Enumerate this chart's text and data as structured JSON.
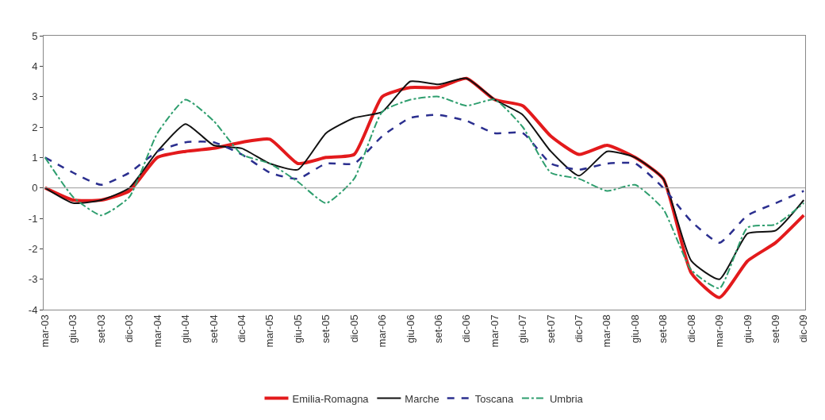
{
  "chart_data": {
    "type": "line",
    "categories": [
      "mar-03",
      "giu-03",
      "set-03",
      "dic-03",
      "mar-04",
      "giu-04",
      "set-04",
      "dic-04",
      "mar-05",
      "giu-05",
      "set-05",
      "dic-05",
      "mar-06",
      "giu-06",
      "set-06",
      "dic-06",
      "mar-07",
      "giu-07",
      "set-07",
      "dic-07",
      "mar-08",
      "giu-08",
      "set-08",
      "dic-08",
      "mar-09",
      "giu-09",
      "set-09",
      "dic-09"
    ],
    "series": [
      {
        "name": "Emilia-Romagna",
        "color": "#e31a1c",
        "line_style": "solid",
        "values": [
          0,
          -0.4,
          -0.4,
          -0.1,
          1.0,
          1.2,
          1.3,
          1.5,
          1.6,
          0.8,
          1.0,
          1.1,
          3.0,
          3.3,
          3.3,
          3.6,
          2.9,
          2.7,
          1.7,
          1.1,
          1.4,
          1.0,
          0.3,
          -2.8,
          -3.6,
          -2.4,
          -1.8,
          -0.9
        ]
      },
      {
        "name": "Marche",
        "color": "#111111",
        "line_style": "solid",
        "values": [
          0,
          -0.5,
          -0.4,
          0.0,
          1.2,
          2.1,
          1.4,
          1.3,
          0.8,
          0.6,
          1.8,
          2.3,
          2.5,
          3.5,
          3.4,
          3.6,
          2.9,
          2.4,
          1.2,
          0.4,
          1.2,
          1.0,
          0.3,
          -2.4,
          -3.0,
          -1.5,
          -1.4,
          -0.4
        ]
      },
      {
        "name": "Toscana",
        "color": "#2b2f8f",
        "line_style": "dashed",
        "values": [
          1.0,
          0.5,
          0.1,
          0.5,
          1.2,
          1.5,
          1.5,
          1.1,
          0.5,
          0.3,
          0.8,
          0.8,
          1.7,
          2.3,
          2.4,
          2.2,
          1.8,
          1.8,
          0.8,
          0.6,
          0.8,
          0.8,
          0.0,
          -1.1,
          -1.8,
          -0.9,
          -0.5,
          -0.1
        ]
      },
      {
        "name": "Umbria",
        "color": "#2e9e6e",
        "line_style": "dashdot",
        "values": [
          1.0,
          -0.3,
          -0.9,
          -0.3,
          1.8,
          2.9,
          2.2,
          1.1,
          0.8,
          0.2,
          -0.5,
          0.3,
          2.5,
          2.9,
          3.0,
          2.7,
          2.9,
          2.0,
          0.5,
          0.3,
          -0.1,
          0.1,
          -0.7,
          -2.7,
          -3.3,
          -1.3,
          -1.2,
          -0.5
        ]
      }
    ],
    "ylim": [
      -4,
      5
    ],
    "yticks": [
      -4,
      -3,
      -2,
      -1,
      0,
      1,
      2,
      3,
      4,
      5
    ],
    "ref_lines": [
      {
        "axis": "y",
        "value": 0,
        "color": "#999999",
        "line_style": "solid"
      }
    ],
    "legend": "bottom",
    "marker": "none"
  }
}
